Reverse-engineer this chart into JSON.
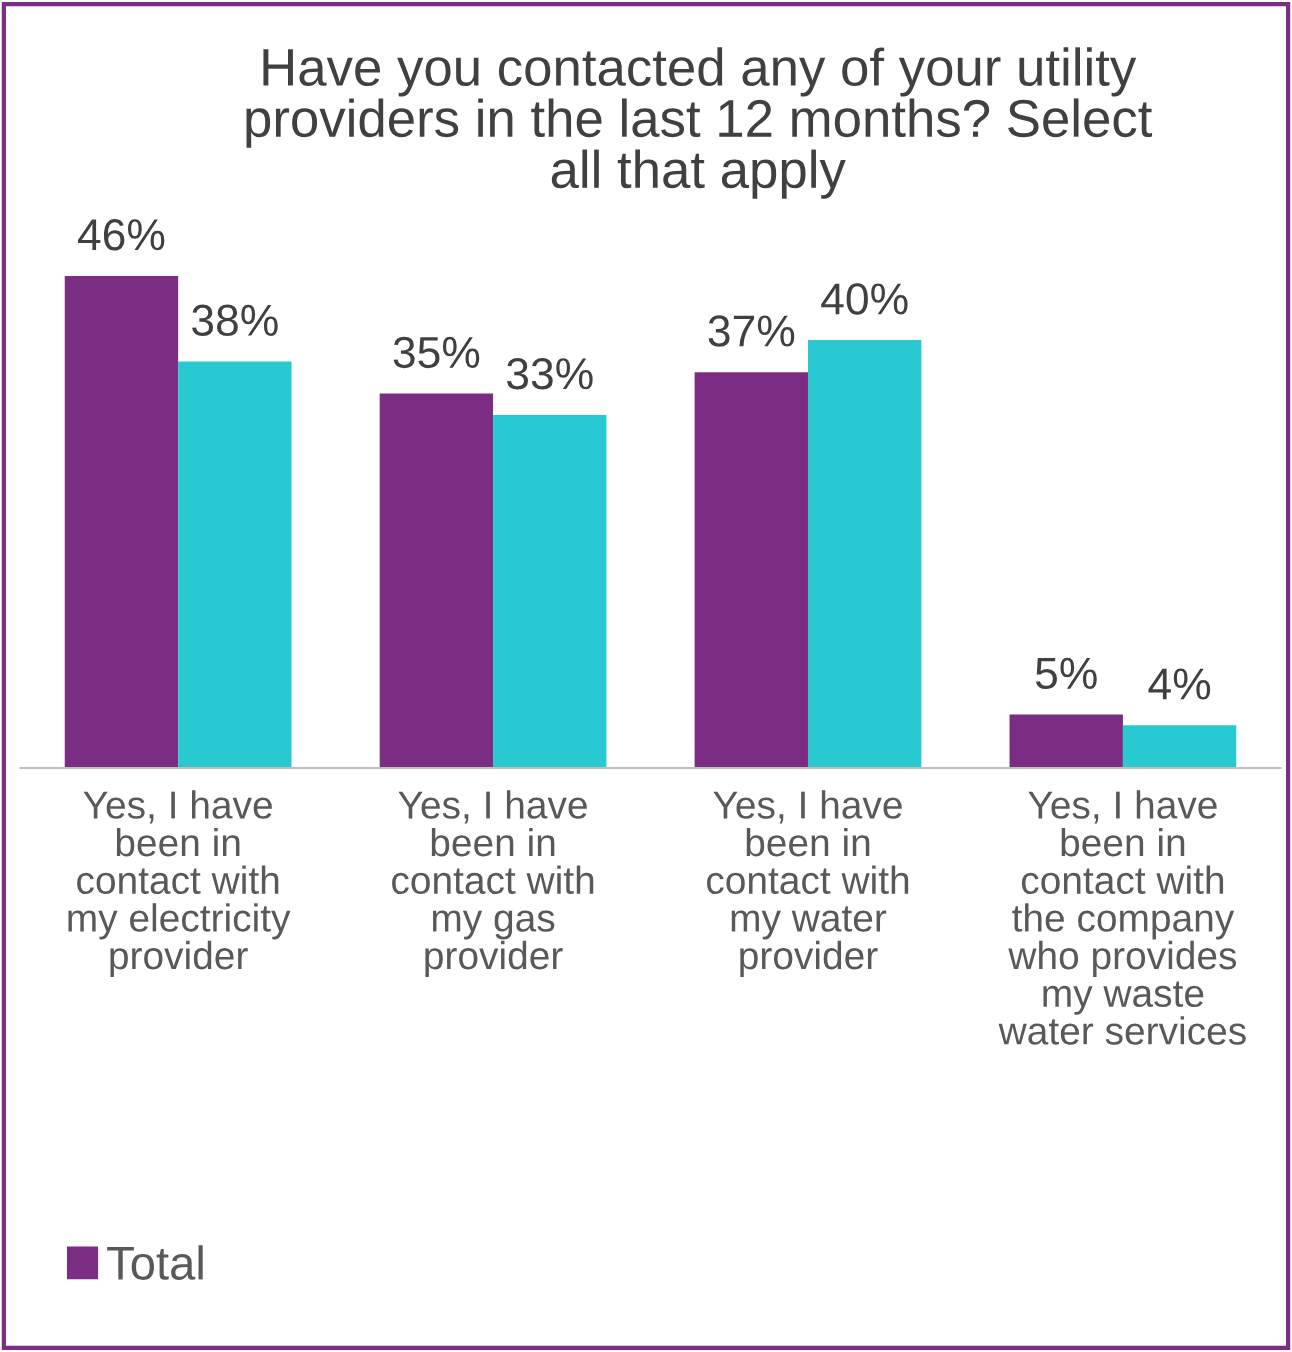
{
  "chart_data": {
    "type": "bar",
    "title": "Have you contacted any of your utility\nproviders in the last 12 months? Select\nall that apply",
    "categories": [
      "Yes, I have\nbeen in\ncontact with\nmy electricity\nprovider",
      "Yes, I have\nbeen in\ncontact with\nmy gas\nprovider",
      "Yes, I have\nbeen in\ncontact with\nmy water\nprovider",
      "Yes, I have\nbeen in\ncontact with\nthe company\nwho provides\nmy waste\nwater services"
    ],
    "series": [
      {
        "name": "Total",
        "color": "#7b2c83",
        "values": [
          46,
          35,
          37,
          5
        ],
        "value_labels": [
          "46%",
          "35%",
          "37%",
          "5%"
        ]
      },
      {
        "color": "#29c9d1",
        "values": [
          38,
          33,
          40,
          4
        ],
        "value_labels": [
          "38%",
          "33%",
          "40%",
          "4%"
        ]
      }
    ],
    "legend": "bottom left",
    "grid": false
  }
}
